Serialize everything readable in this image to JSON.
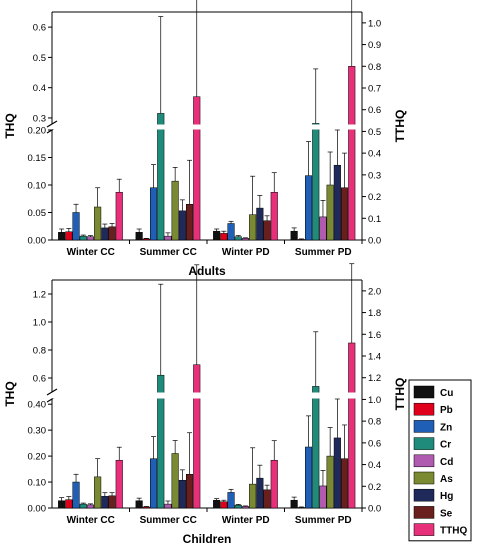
{
  "series_order": [
    "Cu",
    "Pb",
    "Zn",
    "Cr",
    "Cd",
    "As",
    "Hg",
    "Se",
    "TTHQ"
  ],
  "colors": {
    "Cu": "#111111",
    "Pb": "#e0001b",
    "Zn": "#1f5fb5",
    "Cr": "#1f8b7a",
    "Cd": "#b05ab0",
    "As": "#7a8a33",
    "Hg": "#1f2a5a",
    "Se": "#6a1f1f",
    "TTHQ": "#e8307a"
  },
  "chart_data": [
    {
      "type": "bar",
      "panel": "adults",
      "xlabel": "Adults",
      "ylabel": "THQ",
      "ylabel_right": "TTHQ",
      "categories": [
        "Winter CC",
        "Summer CC",
        "Winter PD",
        "Summer PD"
      ],
      "left_axis": {
        "broken": true,
        "lower_range": [
          0,
          0.2
        ],
        "upper_range": [
          0.28,
          0.65
        ],
        "lower_ticks": [
          "0.00",
          "0.05",
          "0.10",
          "0.15",
          "0.20"
        ],
        "upper_ticks": [
          "0.3",
          "0.4",
          "0.5",
          "0.6"
        ],
        "lower_tick_values": [
          0,
          0.05,
          0.1,
          0.15,
          0.2
        ],
        "upper_tick_values": [
          0.3,
          0.4,
          0.5,
          0.6
        ]
      },
      "right_axis": {
        "range": [
          0,
          1.05
        ],
        "ticks": [
          "0.0",
          "0.1",
          "0.2",
          "0.3",
          "0.4",
          "0.5",
          "0.6",
          "0.7",
          "0.8",
          "0.9",
          "1.0"
        ],
        "tick_values": [
          0,
          0.1,
          0.2,
          0.3,
          0.4,
          0.5,
          0.6,
          0.7,
          0.8,
          0.9,
          1.0
        ]
      },
      "series": [
        {
          "name": "Cu",
          "values": [
            0.014,
            0.014,
            0.016,
            0.016
          ],
          "errors": [
            0.006,
            0.006,
            0.004,
            0.006
          ]
        },
        {
          "name": "Pb",
          "values": [
            0.015,
            0.002,
            0.012,
            0.001
          ],
          "errors": [
            0.006,
            0.001,
            0.004,
            0.001
          ]
        },
        {
          "name": "Zn",
          "values": [
            0.05,
            0.095,
            0.03,
            0.117
          ],
          "errors": [
            0.015,
            0.042,
            0.004,
            0.062
          ]
        },
        {
          "name": "Cr",
          "values": [
            0.007,
            0.315,
            0.006,
            0.282
          ],
          "errors": [
            0.002,
            0.32,
            0.002,
            0.18
          ]
        },
        {
          "name": "Cd",
          "values": [
            0.006,
            0.007,
            0.003,
            0.042
          ],
          "errors": [
            0.002,
            0.006,
            0.001,
            0.03
          ]
        },
        {
          "name": "As",
          "values": [
            0.06,
            0.107,
            0.046,
            0.1
          ],
          "errors": [
            0.035,
            0.025,
            0.07,
            0.06
          ]
        },
        {
          "name": "Hg",
          "values": [
            0.022,
            0.053,
            0.058,
            0.136
          ],
          "errors": [
            0.007,
            0.02,
            0.023,
            0.075
          ]
        },
        {
          "name": "Se",
          "values": [
            0.024,
            0.065,
            0.035,
            0.095
          ],
          "errors": [
            0.006,
            0.08,
            0.009,
            0.063
          ]
        },
        {
          "name": "TTHQ",
          "values": [
            0.22,
            0.66,
            0.22,
            0.8
          ],
          "errors": [
            0.06,
            0.46,
            0.09,
            0.38
          ],
          "axis": "right"
        }
      ]
    },
    {
      "type": "bar",
      "panel": "children",
      "xlabel": "Children",
      "ylabel": "THQ",
      "ylabel_right": "TTHQ",
      "categories": [
        "Winter CC",
        "Summer CC",
        "Winter PD",
        "Summer PD"
      ],
      "left_axis": {
        "broken": true,
        "lower_range": [
          0,
          0.42
        ],
        "upper_range": [
          0.5,
          1.3
        ],
        "lower_ticks": [
          "0.00",
          "0.10",
          "0.20",
          "0.30",
          "0.40"
        ],
        "upper_ticks": [
          "0.6",
          "0.8",
          "1.0",
          "1.2"
        ],
        "lower_tick_values": [
          0,
          0.1,
          0.2,
          0.3,
          0.4
        ],
        "upper_tick_values": [
          0.6,
          0.8,
          1.0,
          1.2
        ]
      },
      "right_axis": {
        "range": [
          0,
          2.1
        ],
        "ticks": [
          "0.0",
          "0.2",
          "0.4",
          "0.6",
          "0.8",
          "1.0",
          "1.2",
          "1.4",
          "1.6",
          "1.8",
          "2.0"
        ],
        "tick_values": [
          0,
          0.2,
          0.4,
          0.6,
          0.8,
          1.0,
          1.2,
          1.4,
          1.6,
          1.8,
          2.0
        ]
      },
      "series": [
        {
          "name": "Cu",
          "values": [
            0.028,
            0.028,
            0.03,
            0.03
          ],
          "errors": [
            0.012,
            0.01,
            0.006,
            0.012
          ]
        },
        {
          "name": "Pb",
          "values": [
            0.032,
            0.004,
            0.024,
            0.002
          ],
          "errors": [
            0.012,
            0.002,
            0.006,
            0.002
          ]
        },
        {
          "name": "Zn",
          "values": [
            0.1,
            0.19,
            0.06,
            0.235
          ],
          "errors": [
            0.03,
            0.085,
            0.012,
            0.12
          ]
        },
        {
          "name": "Cr",
          "values": [
            0.015,
            0.62,
            0.011,
            0.54
          ],
          "errors": [
            0.004,
            0.65,
            0.003,
            0.39
          ]
        },
        {
          "name": "Cd",
          "values": [
            0.012,
            0.015,
            0.006,
            0.085
          ],
          "errors": [
            0.004,
            0.012,
            0.002,
            0.06
          ]
        },
        {
          "name": "As",
          "values": [
            0.12,
            0.21,
            0.092,
            0.2
          ],
          "errors": [
            0.07,
            0.05,
            0.14,
            0.11
          ]
        },
        {
          "name": "Hg",
          "values": [
            0.045,
            0.107,
            0.115,
            0.27
          ],
          "errors": [
            0.014,
            0.04,
            0.05,
            0.15
          ]
        },
        {
          "name": "Se",
          "values": [
            0.047,
            0.13,
            0.07,
            0.19
          ],
          "errors": [
            0.012,
            0.16,
            0.018,
            0.13
          ]
        },
        {
          "name": "TTHQ",
          "values": [
            0.44,
            1.32,
            0.44,
            1.52
          ],
          "errors": [
            0.12,
            0.92,
            0.18,
            0.73
          ],
          "axis": "right"
        }
      ]
    }
  ]
}
